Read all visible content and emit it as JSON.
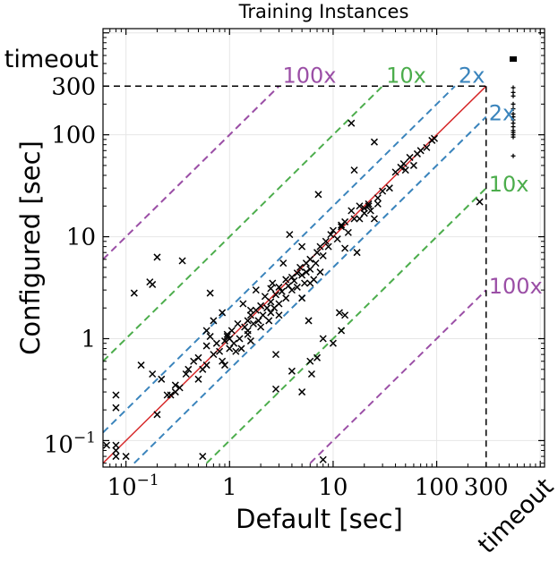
{
  "chart_data": {
    "type": "scatter",
    "title": "Training Instances",
    "xlabel": "Default [sec]",
    "ylabel": "Configured [sec]",
    "scale": "log-log",
    "xlim": [
      0.06,
      1100
    ],
    "ylim": [
      0.055,
      1100
    ],
    "timeout": 300,
    "timeout_label": "timeout",
    "x_ticks": [
      {
        "value": 0.1,
        "label": "10",
        "exp": "−1"
      },
      {
        "value": 1,
        "label": "1",
        "exp": ""
      },
      {
        "value": 10,
        "label": "10",
        "exp": ""
      },
      {
        "value": 100,
        "label": "100",
        "exp": ""
      },
      {
        "value": 300,
        "label": "300",
        "exp": ""
      }
    ],
    "y_ticks": [
      {
        "value": 0.1,
        "label": "10",
        "exp": "−1"
      },
      {
        "value": 1,
        "label": "1",
        "exp": ""
      },
      {
        "value": 10,
        "label": "10",
        "exp": ""
      },
      {
        "value": 100,
        "label": "100",
        "exp": ""
      },
      {
        "value": 300,
        "label": "300",
        "exp": ""
      }
    ],
    "grid": true,
    "speedup_lines": [
      {
        "factor": 2,
        "label": "2x",
        "color": "#3a84bc"
      },
      {
        "factor": 10,
        "label": "10x",
        "color": "#4cad4c"
      },
      {
        "factor": 100,
        "label": "100x",
        "color": "#9b4fa6"
      }
    ],
    "diagonal_color": "#d62728",
    "marker_color": "#000000",
    "points": [
      [
        0.065,
        0.09
      ],
      [
        0.08,
        0.07
      ],
      [
        0.08,
        0.08
      ],
      [
        0.08,
        0.21
      ],
      [
        0.08,
        0.28
      ],
      [
        0.12,
        2.8
      ],
      [
        0.14,
        0.55
      ],
      [
        0.17,
        3.6
      ],
      [
        0.18,
        3.4
      ],
      [
        0.18,
        0.45
      ],
      [
        0.2,
        6.3
      ],
      [
        0.2,
        0.18
      ],
      [
        0.22,
        0.4
      ],
      [
        0.25,
        0.28
      ],
      [
        0.3,
        0.3
      ],
      [
        0.33,
        0.33
      ],
      [
        0.35,
        5.8
      ],
      [
        0.38,
        0.45
      ],
      [
        0.4,
        0.5
      ],
      [
        0.45,
        0.6
      ],
      [
        0.5,
        0.4
      ],
      [
        0.55,
        0.5
      ],
      [
        0.6,
        0.55
      ],
      [
        0.6,
        0.85
      ],
      [
        0.65,
        2.8
      ],
      [
        0.7,
        0.7
      ],
      [
        0.7,
        1.5
      ],
      [
        0.75,
        0.9
      ],
      [
        0.8,
        0.75
      ],
      [
        0.85,
        1.8
      ],
      [
        0.85,
        0.6
      ],
      [
        0.9,
        0.95
      ],
      [
        0.95,
        1.1
      ],
      [
        1.0,
        1.0
      ],
      [
        1.0,
        0.8
      ],
      [
        1.05,
        1.2
      ],
      [
        1.1,
        0.9
      ],
      [
        1.15,
        0.75
      ],
      [
        1.2,
        1.4
      ],
      [
        1.25,
        1.0
      ],
      [
        1.3,
        0.8
      ],
      [
        1.35,
        2.2
      ],
      [
        1.4,
        1.3
      ],
      [
        1.5,
        1.5
      ],
      [
        1.5,
        1.1
      ],
      [
        1.6,
        0.95
      ],
      [
        1.6,
        1.7
      ],
      [
        1.7,
        1.4
      ],
      [
        1.8,
        1.9
      ],
      [
        1.8,
        3.0
      ],
      [
        1.9,
        1.5
      ],
      [
        2.0,
        2.1
      ],
      [
        2.0,
        1.3
      ],
      [
        2.1,
        1.7
      ],
      [
        2.2,
        2.6
      ],
      [
        2.3,
        2.0
      ],
      [
        2.4,
        1.5
      ],
      [
        2.5,
        2.3
      ],
      [
        2.6,
        3.5
      ],
      [
        2.7,
        2.0
      ],
      [
        2.8,
        2.7
      ],
      [
        2.8,
        0.7
      ],
      [
        3.0,
        3.2
      ],
      [
        3.0,
        2.2
      ],
      [
        3.2,
        2.9
      ],
      [
        3.3,
        5.5
      ],
      [
        3.5,
        3.8
      ],
      [
        3.5,
        2.5
      ],
      [
        3.7,
        3.3
      ],
      [
        3.8,
        10.5
      ],
      [
        4.0,
        4.0
      ],
      [
        4.0,
        3.0
      ],
      [
        4.2,
        3.7
      ],
      [
        4.5,
        4.4
      ],
      [
        4.5,
        3.2
      ],
      [
        4.8,
        5.0
      ],
      [
        5.0,
        4.2
      ],
      [
        5.0,
        2.5
      ],
      [
        5.3,
        3.5
      ],
      [
        5.5,
        5.5
      ],
      [
        5.5,
        4.5
      ],
      [
        5.8,
        1.5
      ],
      [
        6.0,
        6.0
      ],
      [
        6.0,
        0.6
      ],
      [
        6.2,
        0.45
      ],
      [
        6.5,
        3.8
      ],
      [
        6.8,
        5.5
      ],
      [
        7.0,
        7.0
      ],
      [
        7.0,
        0.65
      ],
      [
        7.5,
        8.0
      ],
      [
        8.0,
        1.0
      ],
      [
        8.0,
        6.5
      ],
      [
        8.5,
        9.0
      ],
      [
        9.0,
        8.0
      ],
      [
        9.5,
        10.5
      ],
      [
        10,
        0.9
      ],
      [
        10,
        11.5
      ],
      [
        11,
        9.5
      ],
      [
        11.5,
        1.8
      ],
      [
        12,
        12.5
      ],
      [
        12,
        1.2
      ],
      [
        13,
        14
      ],
      [
        14,
        11
      ],
      [
        15,
        18
      ],
      [
        16,
        15
      ],
      [
        17,
        7.0
      ],
      [
        18,
        20
      ],
      [
        20,
        17
      ],
      [
        20,
        19
      ],
      [
        22,
        21
      ],
      [
        23,
        18
      ],
      [
        25,
        15
      ],
      [
        27,
        24
      ],
      [
        30,
        28
      ],
      [
        35,
        30
      ],
      [
        40,
        43
      ],
      [
        45,
        48
      ],
      [
        48,
        52
      ],
      [
        50,
        45
      ],
      [
        55,
        60
      ],
      [
        60,
        50
      ],
      [
        65,
        65
      ],
      [
        70,
        70
      ],
      [
        80,
        75
      ],
      [
        90,
        88
      ],
      [
        95,
        92
      ],
      [
        8.0,
        0.065
      ],
      [
        4.0,
        0.48
      ],
      [
        0.08,
        0.09
      ],
      [
        2.8,
        0.32
      ],
      [
        13,
        1.7
      ],
      [
        16,
        45
      ],
      [
        25,
        85
      ],
      [
        15,
        130
      ],
      [
        260,
        22
      ],
      [
        0.5,
        0.65
      ],
      [
        0.3,
        0.35
      ],
      [
        1.5,
        1.2
      ],
      [
        7.2,
        26
      ],
      [
        6.0,
        4.8
      ],
      [
        1.6,
        1.9
      ],
      [
        22,
        20
      ],
      [
        0.9,
        0.55
      ],
      [
        2.5,
        1.8
      ],
      [
        6.0,
        3.5
      ],
      [
        5.0,
        8.0
      ],
      [
        0.27,
        0.28
      ],
      [
        0.95,
        1.05
      ],
      [
        3.0,
        1.7
      ],
      [
        2.5,
        3.1
      ],
      [
        7.5,
        4.5
      ],
      [
        13,
        7.7
      ],
      [
        0.6,
        1.2
      ],
      [
        0.65,
        1.05
      ],
      [
        0.1,
        0.07
      ],
      [
        0.55,
        0.07
      ],
      [
        5.0,
        0.3
      ],
      [
        12,
        13
      ],
      [
        18,
        15
      ],
      [
        27,
        21
      ]
    ],
    "timeout_points": [
      180,
      160,
      200,
      150,
      140,
      130,
      120,
      110,
      105,
      100,
      95,
      260,
      240,
      290,
      62
    ]
  }
}
